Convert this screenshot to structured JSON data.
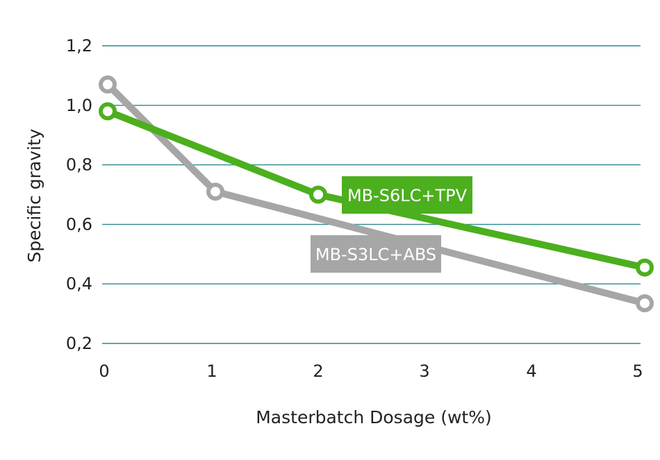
{
  "chart_data": {
    "type": "line",
    "xlabel": "Masterbatch Dosage (wt%)",
    "ylabel": "Specific gravity",
    "x_ticks": [
      "0",
      "1",
      "2",
      "3",
      "4",
      "5"
    ],
    "y_ticks": [
      "0,2",
      "0,4",
      "0,6",
      "0,8",
      "1,0",
      "1,2"
    ],
    "xlim": [
      0,
      5
    ],
    "ylim": [
      0.2,
      1.2
    ],
    "grid": "horizontal",
    "series": [
      {
        "name": "MB-S6LC+TPV",
        "color": "#4caf1e",
        "x": [
          0,
          2,
          5
        ],
        "y": [
          0.98,
          0.7,
          0.455
        ]
      },
      {
        "name": "MB-S3LC+ABS",
        "color": "#a6a6a6",
        "x": [
          0,
          1,
          5
        ],
        "y": [
          1.07,
          0.71,
          0.335
        ]
      }
    ],
    "colors": {
      "grid": "#2a8a8f",
      "text": "#222222"
    }
  }
}
